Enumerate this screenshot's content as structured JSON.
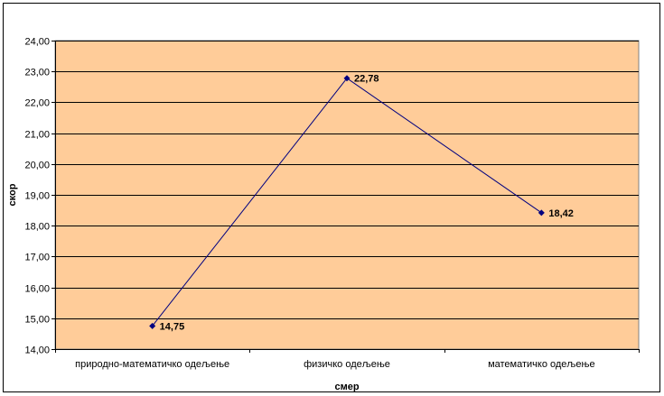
{
  "chart_data": {
    "type": "line",
    "title": "",
    "xlabel": "смер",
    "ylabel": "скор",
    "categories": [
      "природно-математичко одељење",
      "физичко одељење",
      "математичко одељење"
    ],
    "series": [
      {
        "values": [
          14.75,
          22.78,
          18.42
        ]
      }
    ],
    "data_labels": [
      "14,75",
      "22,78",
      "18,42"
    ],
    "ylim": [
      14,
      24
    ],
    "y_ticks": [
      "14,00",
      "15,00",
      "16,00",
      "17,00",
      "18,00",
      "19,00",
      "20,00",
      "21,00",
      "22,00",
      "23,00",
      "24,00"
    ],
    "grid": true,
    "legend": "none",
    "colors": {
      "plot_background": "#FFCC99",
      "line": "#000080",
      "gridline": "#000000"
    }
  }
}
